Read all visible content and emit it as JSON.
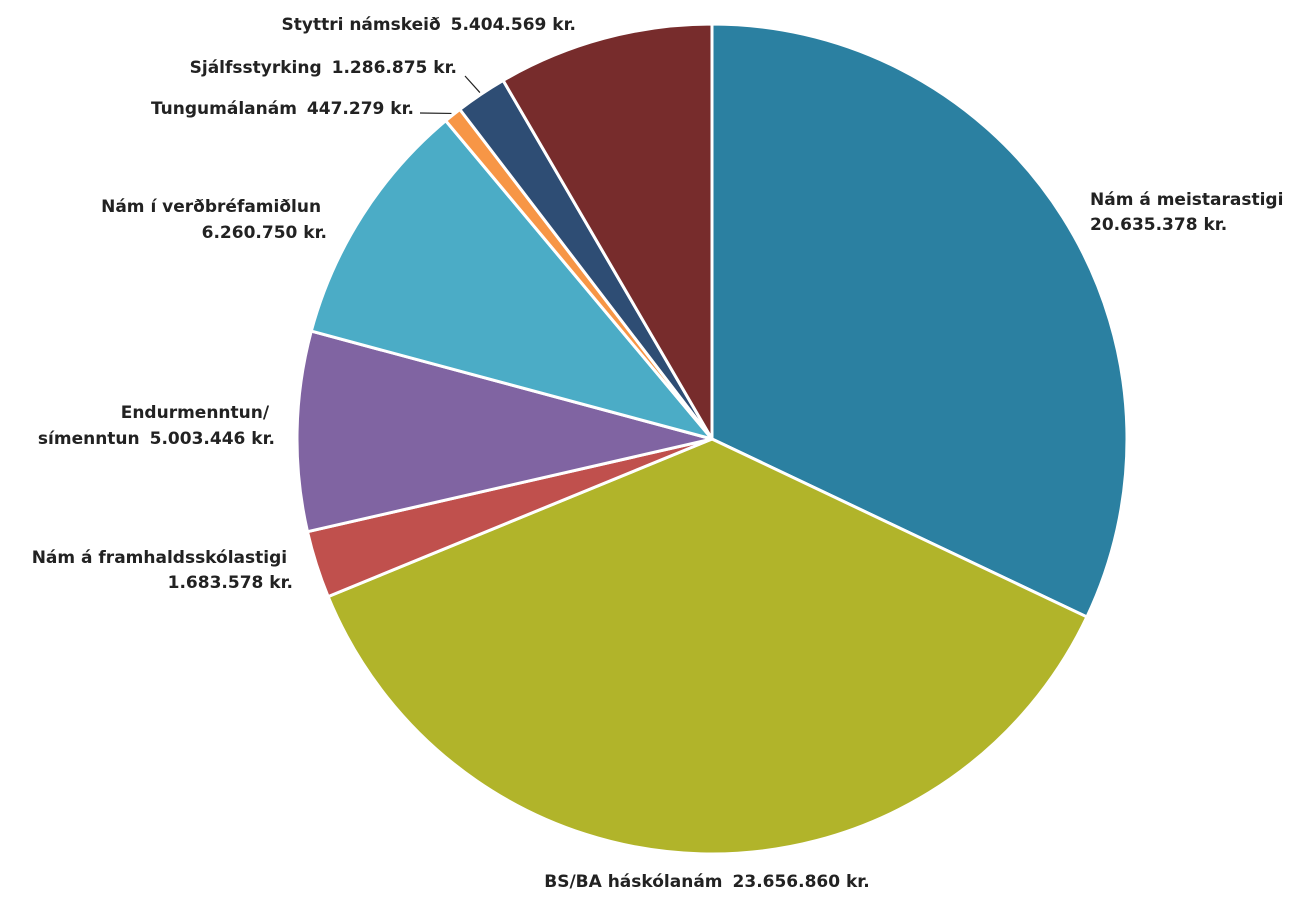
{
  "chart_data": {
    "type": "pie",
    "title": "",
    "slices": [
      {
        "name": "Nám á meistarastigi",
        "value": 20635378,
        "value_label": "20.635.378 kr.",
        "color": "#2b80a1"
      },
      {
        "name": "BS/BA háskólanám",
        "value": 23656860,
        "value_label": "23.656.860 kr.",
        "color": "#b1b42a"
      },
      {
        "name": "Nám á framhaldsskólastigi",
        "value": 1683578,
        "value_label": "1.683.578 kr.",
        "color": "#c0504d"
      },
      {
        "name": "Endurmenntun/ símenntun",
        "value": 5003446,
        "value_label": "5.003.446 kr.",
        "color": "#8064a2"
      },
      {
        "name": "Nám í verðbréfamiðlun",
        "value": 6260750,
        "value_label": "6.260.750 kr.",
        "color": "#4bacc6"
      },
      {
        "name": "Tungumálanám",
        "value": 447279,
        "value_label": "447.279 kr.",
        "color": "#f79646"
      },
      {
        "name": "Sjálfsstyrking",
        "value": 1286875,
        "value_label": "1.286.875 kr.",
        "color": "#2e4d74"
      },
      {
        "name": "Styttri námskeið",
        "value": 5404569,
        "value_label": "5.404.569 kr.",
        "color": "#772c2c"
      }
    ],
    "legend": "none",
    "labels": "outside"
  }
}
